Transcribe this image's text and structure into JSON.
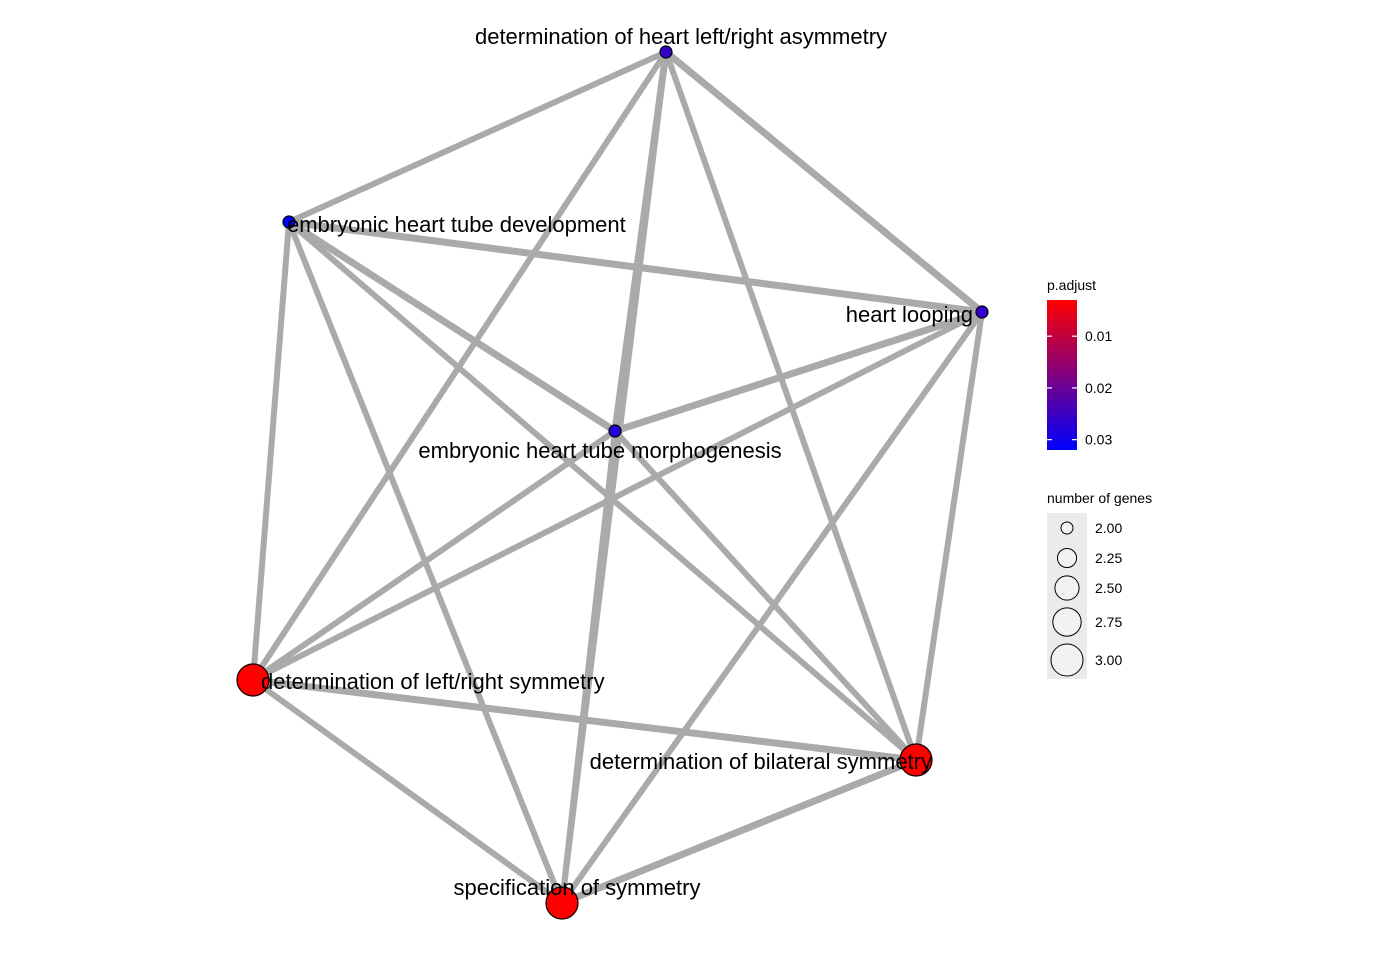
{
  "chart_data": {
    "type": "network",
    "nodes": [
      {
        "id": "n1",
        "label": "determination of heart left/right asymmetry",
        "p_adjust": 0.026,
        "genes": 2
      },
      {
        "id": "n2",
        "label": "embryonic heart tube development",
        "p_adjust": 0.032,
        "genes": 2
      },
      {
        "id": "n3",
        "label": "heart looping",
        "p_adjust": 0.026,
        "genes": 2
      },
      {
        "id": "n4",
        "label": "embryonic heart tube morphogenesis",
        "p_adjust": 0.028,
        "genes": 2
      },
      {
        "id": "n5",
        "label": "determination of left/right symmetry",
        "p_adjust": 0.003,
        "genes": 3
      },
      {
        "id": "n6",
        "label": "determination of bilateral symmetry",
        "p_adjust": 0.003,
        "genes": 3
      },
      {
        "id": "n7",
        "label": "specification of symmetry",
        "p_adjust": 0.003,
        "genes": 3
      }
    ],
    "edges": [
      {
        "source": "n1",
        "target": "n2",
        "weight": 0.67
      },
      {
        "source": "n1",
        "target": "n3",
        "weight": 1.0
      },
      {
        "source": "n1",
        "target": "n4",
        "weight": 1.0
      },
      {
        "source": "n1",
        "target": "n5",
        "weight": 0.67
      },
      {
        "source": "n1",
        "target": "n6",
        "weight": 0.67
      },
      {
        "source": "n1",
        "target": "n7",
        "weight": 0.67
      },
      {
        "source": "n2",
        "target": "n3",
        "weight": 1.0
      },
      {
        "source": "n2",
        "target": "n4",
        "weight": 1.0
      },
      {
        "source": "n2",
        "target": "n5",
        "weight": 0.67
      },
      {
        "source": "n2",
        "target": "n6",
        "weight": 0.67
      },
      {
        "source": "n2",
        "target": "n7",
        "weight": 0.67
      },
      {
        "source": "n3",
        "target": "n4",
        "weight": 1.0
      },
      {
        "source": "n3",
        "target": "n5",
        "weight": 0.67
      },
      {
        "source": "n3",
        "target": "n6",
        "weight": 0.67
      },
      {
        "source": "n3",
        "target": "n7",
        "weight": 0.67
      },
      {
        "source": "n4",
        "target": "n5",
        "weight": 0.67
      },
      {
        "source": "n4",
        "target": "n6",
        "weight": 0.67
      },
      {
        "source": "n4",
        "target": "n7",
        "weight": 0.67
      },
      {
        "source": "n5",
        "target": "n6",
        "weight": 1.0
      },
      {
        "source": "n5",
        "target": "n7",
        "weight": 0.67
      },
      {
        "source": "n6",
        "target": "n7",
        "weight": 1.0
      }
    ],
    "legend": {
      "color": {
        "title": "p.adjust",
        "ticks": [
          "0.01",
          "0.02",
          "0.03"
        ],
        "tick_values": [
          0.01,
          0.02,
          0.03
        ],
        "range": [
          0.003,
          0.032
        ],
        "low_color": "#ff0000",
        "high_color": "#0000ff"
      },
      "size": {
        "title": "number of genes",
        "ticks": [
          "2.00",
          "2.25",
          "2.50",
          "2.75",
          "3.00"
        ],
        "tick_values": [
          2.0,
          2.25,
          2.5,
          2.75,
          3.0
        ]
      }
    },
    "colors": {
      "edge": "#aaaaaa",
      "legend_key_bg": "#ebebeb",
      "legend_circle_fill": "#f2f2f2"
    }
  }
}
